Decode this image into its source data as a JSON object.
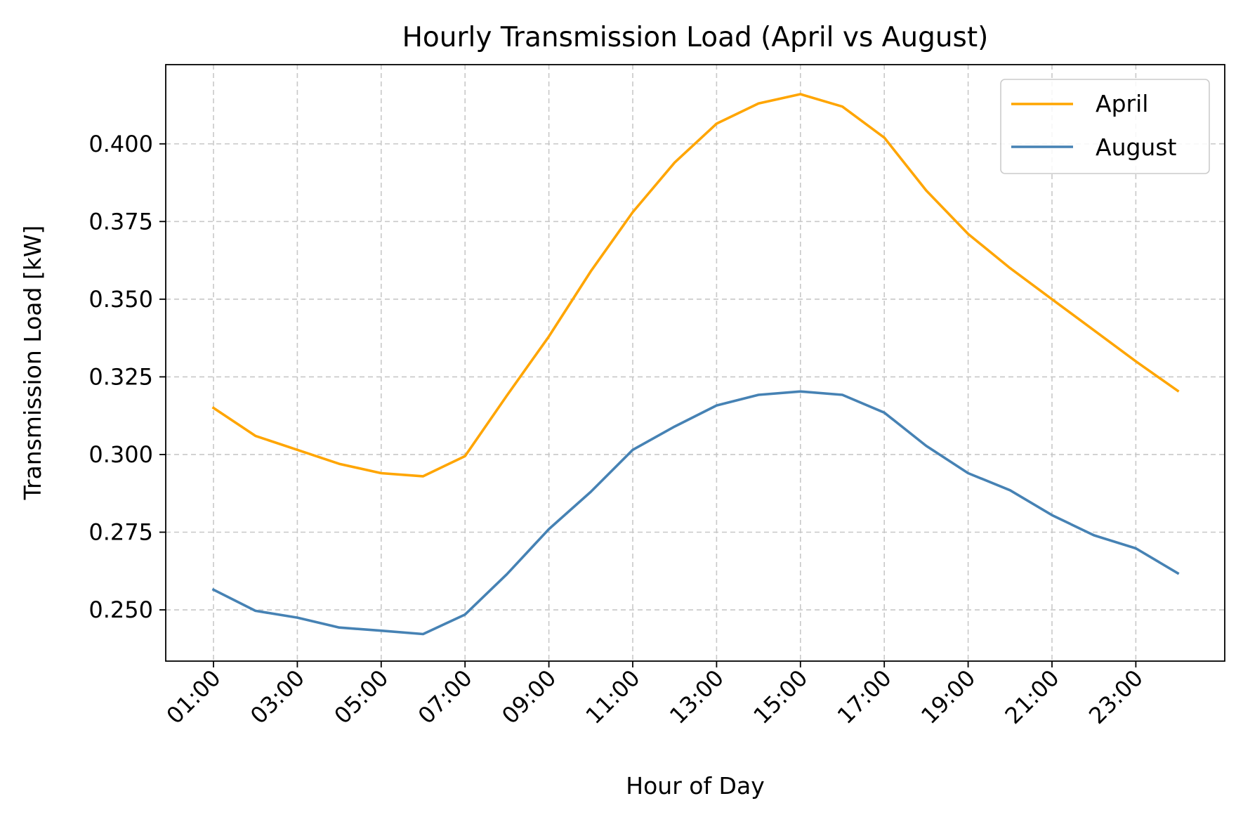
{
  "chart_data": {
    "type": "line",
    "title": "Hourly Transmission Load (April vs August)",
    "xlabel": "Hour of Day",
    "ylabel": "Transmission Load [kW]",
    "x": [
      "01:00",
      "02:00",
      "03:00",
      "04:00",
      "05:00",
      "06:00",
      "07:00",
      "08:00",
      "09:00",
      "10:00",
      "11:00",
      "12:00",
      "13:00",
      "14:00",
      "15:00",
      "16:00",
      "17:00",
      "18:00",
      "19:00",
      "20:00",
      "21:00",
      "22:00",
      "23:00",
      "24:00"
    ],
    "xticks": [
      "01:00",
      "03:00",
      "05:00",
      "07:00",
      "09:00",
      "11:00",
      "13:00",
      "15:00",
      "17:00",
      "19:00",
      "21:00",
      "23:00"
    ],
    "yticks": [
      "0.250",
      "0.275",
      "0.300",
      "0.325",
      "0.350",
      "0.375",
      "0.400"
    ],
    "ylim": [
      0.2335,
      0.4255
    ],
    "grid": true,
    "legend_position": "top-right",
    "series": [
      {
        "name": "April",
        "color": "#FFA500",
        "values": [
          0.315,
          0.306,
          0.3015,
          0.297,
          0.294,
          0.293,
          0.2995,
          0.319,
          0.338,
          0.359,
          0.378,
          0.394,
          0.4065,
          0.413,
          0.416,
          0.412,
          0.402,
          0.385,
          0.371,
          0.36,
          0.35,
          0.34,
          0.33,
          0.3205
        ]
      },
      {
        "name": "August",
        "color": "#4682B4",
        "values": [
          0.2565,
          0.2497,
          0.2475,
          0.2443,
          0.2433,
          0.2422,
          0.2485,
          0.2615,
          0.276,
          0.288,
          0.3015,
          0.309,
          0.3158,
          0.3192,
          0.3203,
          0.3192,
          0.3135,
          0.3028,
          0.294,
          0.2885,
          0.2805,
          0.274,
          0.2698,
          0.2618
        ]
      }
    ]
  }
}
